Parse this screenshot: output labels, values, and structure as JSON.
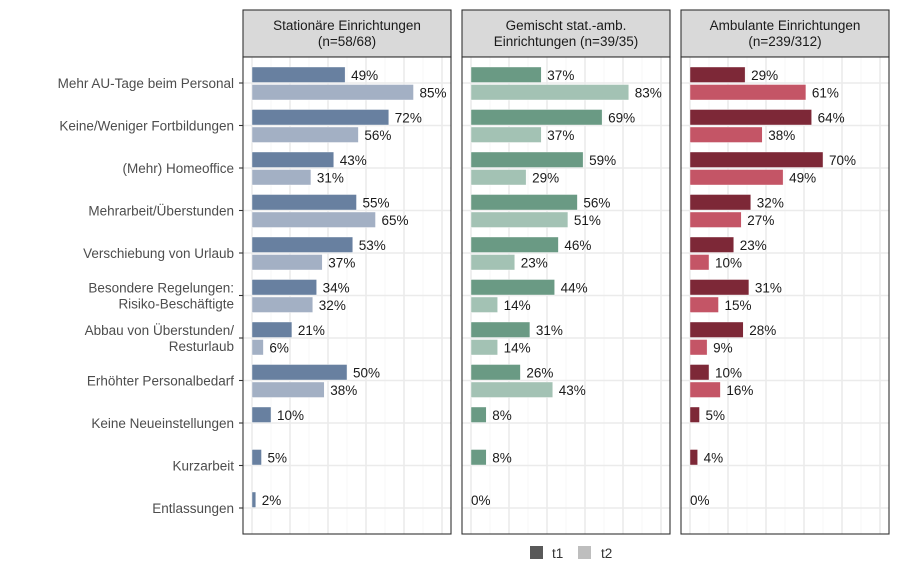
{
  "chart_data": {
    "type": "bar",
    "orientation": "horizontal",
    "title": "",
    "xlabel": "",
    "ylabel": "",
    "xlim": [
      0,
      100
    ],
    "grid": true,
    "legend_position": "bottom",
    "categories": [
      "Mehr AU-Tage beim Personal",
      "Keine/Weniger Fortbildungen",
      "(Mehr) Homeoffice",
      "Mehrarbeit/Überstunden",
      "Verschiebung von Urlaub",
      "Besondere Regelungen:\nRisiko-Beschäftigte",
      "Abbau von Überstunden/\nResturlaub",
      "Erhöhter Personalbedarf",
      "Keine Neueinstellungen",
      "Kurzarbeit",
      "Entlassungen"
    ],
    "legend": [
      {
        "name": "t1",
        "color": "#595959"
      },
      {
        "name": "t2",
        "color": "#bebebe"
      }
    ],
    "panels": [
      {
        "title": "Stationäre Einrichtungen\n(n=58/68)",
        "colors": {
          "t1": "#6880a0",
          "t2": "#a3b0c4"
        },
        "series": [
          {
            "name": "t1",
            "values": [
              49,
              72,
              43,
              55,
              53,
              34,
              21,
              50,
              10,
              5,
              2
            ]
          },
          {
            "name": "t2",
            "values": [
              85,
              56,
              31,
              65,
              37,
              32,
              6,
              38,
              null,
              null,
              null
            ]
          }
        ]
      },
      {
        "title": "Gemischt stat.-amb.\nEinrichtungen (n=39/35)",
        "colors": {
          "t1": "#6a9a84",
          "t2": "#a3c2b4"
        },
        "series": [
          {
            "name": "t1",
            "values": [
              37,
              69,
              59,
              56,
              46,
              44,
              31,
              26,
              8,
              8,
              0
            ]
          },
          {
            "name": "t2",
            "values": [
              83,
              37,
              29,
              51,
              23,
              14,
              14,
              43,
              null,
              null,
              null
            ]
          }
        ]
      },
      {
        "title": "Ambulante Einrichtungen\n(n=239/312)",
        "colors": {
          "t1": "#7d2837",
          "t2": "#c45566"
        },
        "series": [
          {
            "name": "t1",
            "values": [
              29,
              64,
              70,
              32,
              23,
              31,
              28,
              10,
              5,
              4,
              0
            ]
          },
          {
            "name": "t2",
            "values": [
              61,
              38,
              49,
              27,
              10,
              15,
              9,
              16,
              null,
              null,
              null
            ]
          }
        ]
      }
    ],
    "value_suffix": "%"
  }
}
